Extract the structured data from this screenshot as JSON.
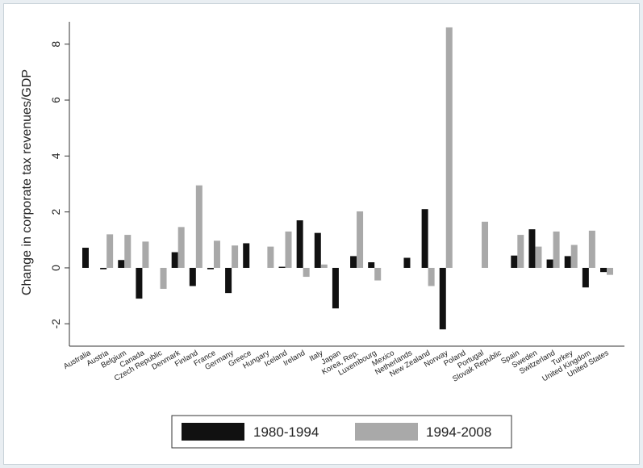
{
  "chart_data": {
    "type": "bar",
    "ylabel": "Change in corporate tax revenues/GDP",
    "xlabel": "",
    "ylim": [
      -2.8,
      8.8
    ],
    "yticks": [
      -2,
      0,
      2,
      4,
      6,
      8
    ],
    "grid": false,
    "legend_position": "bottom",
    "categories": [
      "Australia",
      "Austria",
      "Belgium",
      "Canada",
      "Czech Republic",
      "Denmark",
      "Finland",
      "France",
      "Germany",
      "Greece",
      "Hungary",
      "Iceland",
      "Ireland",
      "Italy",
      "Japan",
      "Korea, Rep.",
      "Luxembourg",
      "Mexico",
      "Netherlands",
      "New Zealand",
      "Norway",
      "Poland",
      "Portugal",
      "Slovak Republic",
      "Spain",
      "Sweden",
      "Switzerland",
      "Turkey",
      "United Kingdom",
      "United States"
    ],
    "series": [
      {
        "name": "1980-1994",
        "color": "#111111",
        "values": [
          0.72,
          -0.05,
          0.28,
          -1.1,
          null,
          0.56,
          -0.65,
          -0.05,
          -0.9,
          0.88,
          null,
          0.04,
          1.7,
          1.25,
          -1.45,
          0.42,
          0.2,
          null,
          0.36,
          2.1,
          -2.2,
          null,
          null,
          null,
          0.44,
          1.38,
          0.3,
          0.42,
          -0.7,
          -0.15
        ]
      },
      {
        "name": "1994-2008",
        "color": "#a9a9a9",
        "values": [
          null,
          1.2,
          1.18,
          0.94,
          -0.75,
          1.46,
          2.95,
          0.97,
          0.8,
          null,
          0.76,
          1.3,
          -0.32,
          0.12,
          null,
          2.02,
          -0.45,
          null,
          null,
          -0.65,
          8.6,
          null,
          1.65,
          null,
          1.18,
          0.76,
          1.3,
          0.82,
          1.33,
          -0.25
        ]
      }
    ]
  },
  "legend": {
    "items": [
      {
        "label": "1980-1994",
        "color": "#111111"
      },
      {
        "label": "1994-2008",
        "color": "#a9a9a9"
      }
    ]
  }
}
